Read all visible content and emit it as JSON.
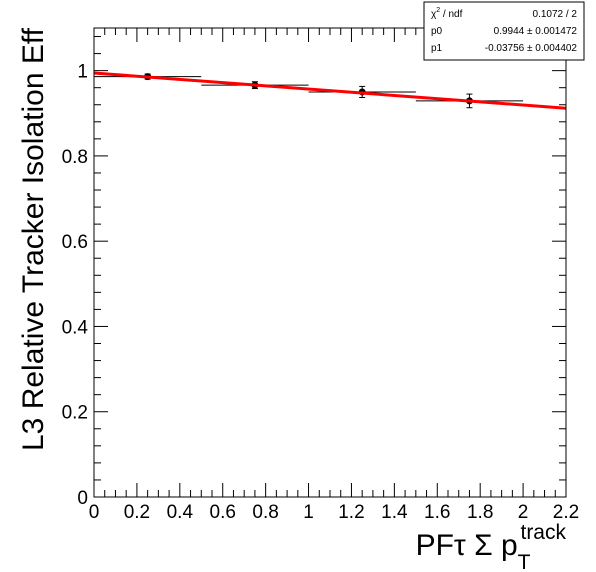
{
  "chart_data": {
    "type": "scatter",
    "title": "",
    "xlabel": {
      "prefix": "PFτ Σ p",
      "sub": "T",
      "sup": "track"
    },
    "ylabel": "L3 Relative Tracker Isolation Eff",
    "xlim": [
      0,
      2.2
    ],
    "ylim": [
      0,
      1.1
    ],
    "x_ticks": [
      0,
      0.2,
      0.4,
      0.6,
      0.8,
      1,
      1.2,
      1.4,
      1.6,
      1.8,
      2,
      2.2
    ],
    "x_tick_labels": [
      "0",
      "0.2",
      "0.4",
      "0.6",
      "0.8",
      "1",
      "1.2",
      "1.4",
      "1.6",
      "1.8",
      "2",
      "2.2"
    ],
    "y_ticks": [
      0,
      0.2,
      0.4,
      0.6,
      0.8,
      1
    ],
    "y_tick_labels": [
      "0",
      "0.2",
      "0.4",
      "0.6",
      "0.8",
      "1"
    ],
    "grid": false,
    "series": [
      {
        "points": [
          {
            "x": 0.25,
            "y": 0.986,
            "xerr": 0.25,
            "yerr": 0.006
          },
          {
            "x": 0.75,
            "y": 0.966,
            "xerr": 0.25,
            "yerr": 0.008
          },
          {
            "x": 1.25,
            "y": 0.95,
            "xerr": 0.25,
            "yerr": 0.013
          },
          {
            "x": 1.75,
            "y": 0.929,
            "xerr": 0.25,
            "yerr": 0.016
          }
        ]
      }
    ],
    "fit": {
      "function": "p0 + p1*x",
      "p0": 0.9944,
      "p1": -0.03756,
      "x_range": [
        0,
        2.2
      ],
      "color": "#ff0000"
    },
    "stats_box": {
      "position": "top-right",
      "rows": [
        {
          "label_main": "χ",
          "label_sup": "2",
          "label_rest": " / ndf",
          "value": "0.1072 / 2"
        },
        {
          "label_main": "p0",
          "label_sup": "",
          "label_rest": "",
          "value": "0.9944 ± 0.001472"
        },
        {
          "label_main": "p1",
          "label_sup": "",
          "label_rest": "",
          "value": "-0.03756 ± 0.004402"
        }
      ]
    }
  }
}
